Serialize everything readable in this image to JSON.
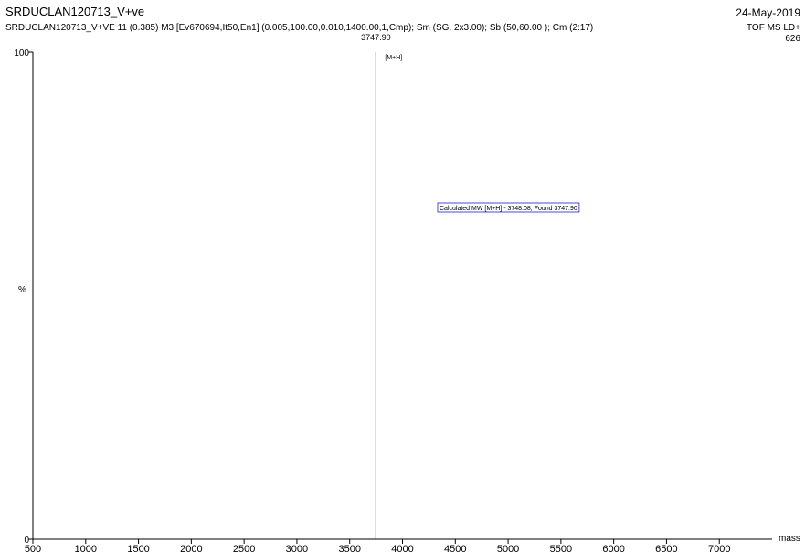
{
  "chart_data": {
    "type": "spectrum",
    "title": "SRDUCLAN120713_V+ve",
    "subtitle": "SRDUCLAN120713_V+VE  11 (0.385) M3 [Ev670694,It50,En1] (0.005,100.00,0.010,1400.00,1,Cmp); Sm (SG, 2x3.00); Sb (50,60.00 ); Cm (2:17)",
    "date": "24-May-2019",
    "instrument": "TOF MS LD+",
    "intensity": "626",
    "x_label": "mass",
    "y_label": "%",
    "x": [
      3747.9
    ],
    "values": [
      100
    ],
    "value_labels": [
      "3747.90"
    ],
    "color": "#000000",
    "peak_annotation": "[M+H]",
    "annotation": "Calculated MW [M+H] - 3748.08, Found 3747.90",
    "annotation_color": "#1f1fcf",
    "xlim": [
      500,
      7500
    ],
    "xticks": [
      500,
      1000,
      1500,
      2000,
      2500,
      3000,
      3500,
      4000,
      4500,
      5000,
      5500,
      6000,
      6500,
      7000
    ],
    "ylim": [
      0,
      100
    ],
    "yticks": [
      0,
      100
    ]
  }
}
